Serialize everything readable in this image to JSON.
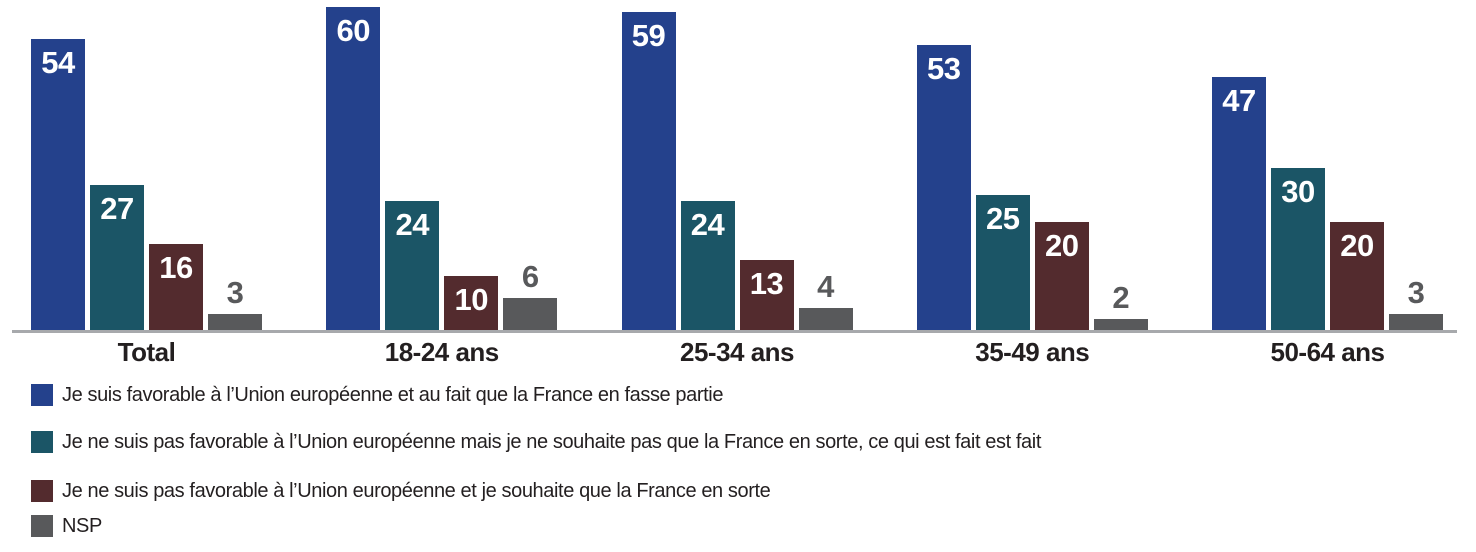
{
  "chart_data": {
    "type": "bar",
    "title": "",
    "xlabel": "",
    "ylabel": "",
    "ylim": [
      0,
      60
    ],
    "grid": false,
    "legend_position": "bottom-left",
    "axis_line_color": "#a7a9ac",
    "value_label_inside_color": "#ffffff",
    "value_label_outside_color": "#58595b",
    "value_label_outside_threshold": 10,
    "categories": [
      "Total",
      "18-24 ans",
      "25-34 ans",
      "35-49 ans",
      "50-64 ans"
    ],
    "series": [
      {
        "name": "Je suis favorable à l’Union européenne et au fait que la France en fasse partie",
        "color": "#24418c",
        "values": [
          54,
          60,
          59,
          53,
          47
        ]
      },
      {
        "name": "Je ne suis pas favorable à l’Union européenne mais je ne souhaite pas que la France en sorte, ce qui est fait est fait",
        "color": "#1b5566",
        "values": [
          27,
          24,
          24,
          25,
          30
        ]
      },
      {
        "name": "Je ne suis pas favorable à l’Union européenne et je souhaite que la France en sorte",
        "color": "#532b2e",
        "values": [
          16,
          10,
          13,
          20,
          20
        ]
      },
      {
        "name": "NSP",
        "color": "#58595b",
        "values": [
          3,
          6,
          4,
          2,
          3
        ]
      }
    ]
  }
}
